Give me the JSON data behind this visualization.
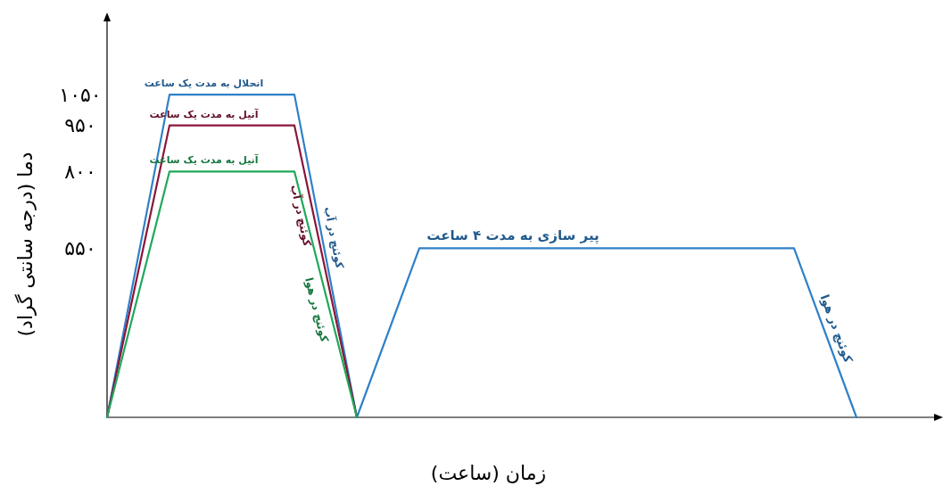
{
  "chart_data": {
    "type": "line",
    "xlabel": "زمان (ساعت)",
    "ylabel": "دما (درجه سانتی گراد)",
    "ylim": [
      0,
      1300
    ],
    "yticks": [
      {
        "value": 550,
        "label": "۵۵۰"
      },
      {
        "value": 800,
        "label": "۸۰۰"
      },
      {
        "value": 950,
        "label": "۹۵۰"
      },
      {
        "value": 1050,
        "label": "۱۰۵۰"
      }
    ],
    "categories": [
      null,
      null,
      null,
      null,
      null,
      null,
      null,
      null,
      null,
      null,
      null,
      null,
      null
    ],
    "tick_labels": "y",
    "grid": false,
    "marker": "none",
    "line_style": "solid",
    "series": [
      {
        "color": "#2f80c8",
        "values": [
          0,
          1050,
          1050,
          1050,
          0,
          550,
          550,
          550,
          550,
          550,
          550,
          550,
          0
        ]
      },
      {
        "color": "#8b1538",
        "values": [
          0,
          950,
          950,
          950,
          0,
          null,
          null,
          null,
          null,
          null,
          null,
          null,
          null
        ]
      },
      {
        "color": "#1fa85a",
        "values": [
          0,
          800,
          800,
          800,
          0,
          null,
          null,
          null,
          null,
          null,
          null,
          null,
          null
        ]
      }
    ],
    "annotations": [
      "انحلال به مدت یک ساعت",
      "آنیل به مدت یک ساعت",
      "آنیل به مدت یک ساعت",
      "کوئنچ در آب",
      "کوئنچ در آب",
      "کوئنچ در هوا",
      "پیر سازی به مدت ۴ ساعت",
      "کوئنچ در هوا"
    ]
  }
}
